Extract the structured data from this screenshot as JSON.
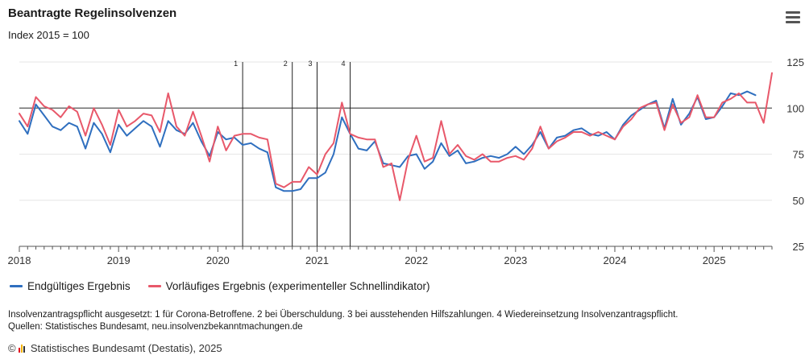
{
  "header": {
    "title": "Beantragte Regelinsolvenzen",
    "subtitle": "Index 2015 = 100",
    "menu_icon": "hamburger-menu-icon"
  },
  "chart_data": {
    "type": "line",
    "title": "Beantragte Regelinsolvenzen",
    "subtitle": "Index 2015 = 100",
    "ylim": [
      25,
      125
    ],
    "y_ticks": [
      25,
      50,
      75,
      100,
      125
    ],
    "x_ticks": [
      "2018",
      "2019",
      "2020",
      "2021",
      "2022",
      "2023",
      "2024",
      "2025"
    ],
    "reference_line": 100,
    "annotation_lines": [
      {
        "label": "1",
        "date": "2020-04"
      },
      {
        "label": "2",
        "date": "2020-10"
      },
      {
        "label": "3",
        "date": "2021-01"
      },
      {
        "label": "4",
        "date": "2021-05"
      }
    ],
    "grid": true,
    "legend_position": "bottom-left",
    "series": [
      {
        "name": "Endgültiges Ergebnis",
        "color": "#2f6fbf",
        "start": "2018-01",
        "values": [
          93,
          86,
          102,
          96,
          90,
          88,
          92,
          90,
          78,
          92,
          86,
          76,
          91,
          85,
          89,
          93,
          90,
          79,
          93,
          88,
          86,
          92,
          82,
          74,
          87,
          83,
          84,
          80,
          81,
          78,
          76,
          57,
          55,
          55,
          56,
          62,
          62,
          65,
          75,
          95,
          86,
          78,
          77,
          82,
          70,
          69,
          68,
          74,
          75,
          67,
          71,
          81,
          74,
          77,
          70,
          71,
          73,
          74,
          73,
          75,
          79,
          75,
          80,
          87,
          78,
          84,
          85,
          88,
          89,
          86,
          85,
          87,
          83,
          91,
          96,
          99,
          102,
          104,
          89,
          105,
          91,
          97,
          106,
          94,
          95,
          101,
          108,
          107,
          109,
          107
        ],
        "visible_text": "Endgültiges Ergebnis"
      },
      {
        "name": "Vorläufiges Ergebnis (experimenteller Schnellindikator)",
        "color": "#e8586a",
        "start": "2018-01",
        "values": [
          97,
          90,
          106,
          101,
          99,
          95,
          101,
          98,
          85,
          100,
          91,
          80,
          99,
          90,
          93,
          97,
          96,
          87,
          108,
          90,
          85,
          98,
          85,
          71,
          90,
          77,
          85,
          86,
          86,
          84,
          83,
          59,
          57,
          60,
          60,
          68,
          64,
          75,
          81,
          103,
          86,
          84,
          83,
          83,
          68,
          70,
          50,
          72,
          85,
          71,
          73,
          93,
          75,
          80,
          74,
          72,
          75,
          71,
          71,
          73,
          74,
          72,
          78,
          90,
          78,
          82,
          84,
          87,
          87,
          85,
          87,
          85,
          83,
          90,
          94,
          100,
          102,
          103,
          88,
          102,
          92,
          95,
          107,
          95,
          95,
          103,
          105,
          108,
          103,
          103,
          92,
          119
        ],
        "visible_text": "Vorläufiges Ergebnis (experimenteller Schnellindikator)"
      }
    ]
  },
  "note": {
    "line1": "Insolvenzantragspflicht ausgesetzt: 1 für Corona-Betroffene. 2 bei Überschuldung. 3 bei ausstehenden Hilfszahlungen. 4 Wiedereinsetzung Insolvenzantragspflicht.",
    "line2": "Quellen: Statistisches Bundesamt, neu.insolvenzbekanntmachungen.de"
  },
  "footer": {
    "copyright": "©",
    "logo_icon": "destatis-logo-icon",
    "text": "Statistisches Bundesamt (Destatis), 2025"
  }
}
